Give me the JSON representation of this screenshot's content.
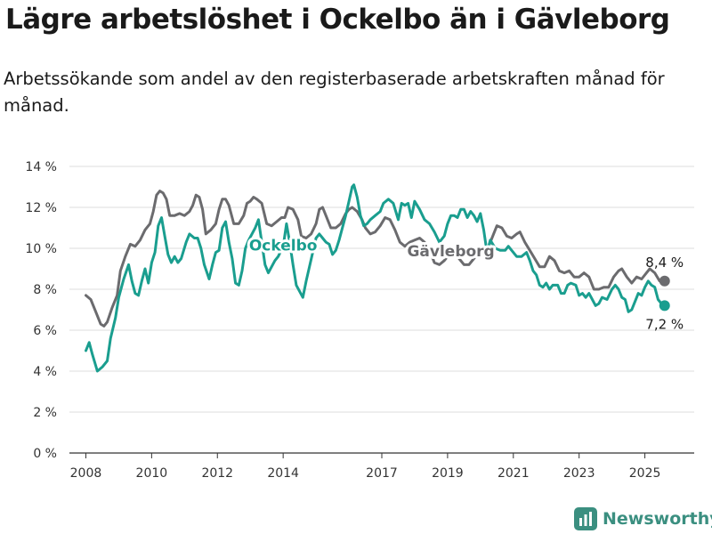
{
  "title": "Lägre arbetslöshet i Ockelbo än i Gävleborg",
  "subtitle": "Arbetssökande som andel av den registerbaserade arbetskraften månad för månad.",
  "brand": "Newsworthy",
  "chart_data": {
    "type": "line",
    "xlim": [
      2007.5,
      2026.5
    ],
    "ylim": [
      0,
      14
    ],
    "x_ticks": [
      2008,
      2010,
      2012,
      2014,
      2017,
      2019,
      2021,
      2023,
      2025
    ],
    "y_ticks": [
      {
        "value": 0,
        "label": "0 %"
      },
      {
        "value": 2,
        "label": "2 %"
      },
      {
        "value": 4,
        "label": "4 %"
      },
      {
        "value": 6,
        "label": "6 %"
      },
      {
        "value": 8,
        "label": "8 %"
      },
      {
        "value": 10,
        "label": "10 %"
      },
      {
        "value": 12,
        "label": "12 %"
      },
      {
        "value": 14,
        "label": "14 %"
      }
    ],
    "grid": true,
    "series": [
      {
        "name": "Gävleborg",
        "color": "#6b6b6e",
        "end_label": "8,4 %",
        "points": [
          [
            2008.0,
            7.7
          ],
          [
            2008.15,
            7.5
          ],
          [
            2008.3,
            6.9
          ],
          [
            2008.45,
            6.3
          ],
          [
            2008.55,
            6.2
          ],
          [
            2008.65,
            6.4
          ],
          [
            2008.8,
            7.1
          ],
          [
            2008.95,
            7.7
          ],
          [
            2009.05,
            8.9
          ],
          [
            2009.2,
            9.6
          ],
          [
            2009.35,
            10.2
          ],
          [
            2009.5,
            10.1
          ],
          [
            2009.65,
            10.4
          ],
          [
            2009.8,
            10.9
          ],
          [
            2009.95,
            11.2
          ],
          [
            2010.05,
            11.8
          ],
          [
            2010.15,
            12.6
          ],
          [
            2010.25,
            12.8
          ],
          [
            2010.35,
            12.7
          ],
          [
            2010.45,
            12.4
          ],
          [
            2010.55,
            11.6
          ],
          [
            2010.7,
            11.6
          ],
          [
            2010.85,
            11.7
          ],
          [
            2011.0,
            11.6
          ],
          [
            2011.15,
            11.8
          ],
          [
            2011.25,
            12.1
          ],
          [
            2011.35,
            12.6
          ],
          [
            2011.45,
            12.5
          ],
          [
            2011.55,
            11.9
          ],
          [
            2011.65,
            10.7
          ],
          [
            2011.8,
            10.9
          ],
          [
            2011.95,
            11.2
          ],
          [
            2012.05,
            11.9
          ],
          [
            2012.15,
            12.4
          ],
          [
            2012.25,
            12.4
          ],
          [
            2012.35,
            12.1
          ],
          [
            2012.5,
            11.2
          ],
          [
            2012.65,
            11.2
          ],
          [
            2012.8,
            11.6
          ],
          [
            2012.9,
            12.2
          ],
          [
            2013.0,
            12.3
          ],
          [
            2013.1,
            12.5
          ],
          [
            2013.2,
            12.4
          ],
          [
            2013.35,
            12.2
          ],
          [
            2013.5,
            11.2
          ],
          [
            2013.65,
            11.1
          ],
          [
            2013.8,
            11.3
          ],
          [
            2013.95,
            11.5
          ],
          [
            2014.05,
            11.5
          ],
          [
            2014.15,
            12.0
          ],
          [
            2014.3,
            11.9
          ],
          [
            2014.45,
            11.4
          ],
          [
            2014.55,
            10.6
          ],
          [
            2014.7,
            10.5
          ],
          [
            2014.85,
            10.7
          ],
          [
            2015.0,
            11.2
          ],
          [
            2015.1,
            11.9
          ],
          [
            2015.2,
            12.0
          ],
          [
            2015.3,
            11.6
          ],
          [
            2015.45,
            11.0
          ],
          [
            2015.6,
            11.0
          ],
          [
            2015.75,
            11.2
          ],
          [
            2015.9,
            11.7
          ],
          [
            2016.0,
            11.9
          ],
          [
            2016.1,
            12.0
          ],
          [
            2016.25,
            11.8
          ],
          [
            2016.4,
            11.4
          ],
          [
            2016.5,
            11.0
          ],
          [
            2016.65,
            10.7
          ],
          [
            2016.8,
            10.8
          ],
          [
            2016.95,
            11.1
          ],
          [
            2017.1,
            11.5
          ],
          [
            2017.25,
            11.4
          ],
          [
            2017.4,
            10.9
          ],
          [
            2017.55,
            10.3
          ],
          [
            2017.7,
            10.1
          ],
          [
            2017.85,
            10.3
          ],
          [
            2018.0,
            10.4
          ],
          [
            2018.15,
            10.5
          ],
          [
            2018.3,
            10.3
          ],
          [
            2018.45,
            9.9
          ],
          [
            2018.6,
            9.3
          ],
          [
            2018.75,
            9.2
          ],
          [
            2018.9,
            9.4
          ],
          [
            2019.05,
            9.7
          ],
          [
            2019.2,
            9.9
          ],
          [
            2019.35,
            9.5
          ],
          [
            2019.5,
            9.2
          ],
          [
            2019.65,
            9.2
          ],
          [
            2019.8,
            9.5
          ],
          [
            2019.95,
            9.8
          ],
          [
            2020.1,
            10.0
          ],
          [
            2020.25,
            10.1
          ],
          [
            2020.4,
            10.7
          ],
          [
            2020.5,
            11.1
          ],
          [
            2020.65,
            11.0
          ],
          [
            2020.8,
            10.6
          ],
          [
            2020.95,
            10.5
          ],
          [
            2021.1,
            10.7
          ],
          [
            2021.2,
            10.8
          ],
          [
            2021.35,
            10.3
          ],
          [
            2021.5,
            9.9
          ],
          [
            2021.65,
            9.5
          ],
          [
            2021.8,
            9.1
          ],
          [
            2021.95,
            9.1
          ],
          [
            2022.1,
            9.6
          ],
          [
            2022.25,
            9.4
          ],
          [
            2022.4,
            8.9
          ],
          [
            2022.55,
            8.8
          ],
          [
            2022.7,
            8.9
          ],
          [
            2022.85,
            8.6
          ],
          [
            2023.0,
            8.6
          ],
          [
            2023.15,
            8.8
          ],
          [
            2023.3,
            8.6
          ],
          [
            2023.45,
            8.0
          ],
          [
            2023.6,
            8.0
          ],
          [
            2023.75,
            8.1
          ],
          [
            2023.9,
            8.1
          ],
          [
            2024.05,
            8.6
          ],
          [
            2024.2,
            8.9
          ],
          [
            2024.3,
            9.0
          ],
          [
            2024.45,
            8.6
          ],
          [
            2024.6,
            8.3
          ],
          [
            2024.75,
            8.6
          ],
          [
            2024.9,
            8.5
          ],
          [
            2025.05,
            8.8
          ],
          [
            2025.15,
            9.0
          ],
          [
            2025.3,
            8.8
          ],
          [
            2025.45,
            8.4
          ],
          [
            2025.6,
            8.4
          ]
        ]
      },
      {
        "name": "Ockelbo",
        "color": "#1a9e8f",
        "end_label": "7,2 %",
        "points": [
          [
            2008.0,
            5.0
          ],
          [
            2008.1,
            5.4
          ],
          [
            2008.2,
            4.8
          ],
          [
            2008.35,
            4.0
          ],
          [
            2008.5,
            4.2
          ],
          [
            2008.65,
            4.5
          ],
          [
            2008.75,
            5.6
          ],
          [
            2008.9,
            6.6
          ],
          [
            2009.0,
            7.6
          ],
          [
            2009.15,
            8.5
          ],
          [
            2009.3,
            9.2
          ],
          [
            2009.4,
            8.4
          ],
          [
            2009.5,
            7.8
          ],
          [
            2009.6,
            7.7
          ],
          [
            2009.7,
            8.4
          ],
          [
            2009.8,
            9.0
          ],
          [
            2009.9,
            8.3
          ],
          [
            2010.0,
            9.3
          ],
          [
            2010.1,
            9.8
          ],
          [
            2010.2,
            11.1
          ],
          [
            2010.3,
            11.5
          ],
          [
            2010.4,
            10.6
          ],
          [
            2010.5,
            9.7
          ],
          [
            2010.6,
            9.3
          ],
          [
            2010.7,
            9.6
          ],
          [
            2010.8,
            9.3
          ],
          [
            2010.9,
            9.5
          ],
          [
            2011.05,
            10.3
          ],
          [
            2011.15,
            10.7
          ],
          [
            2011.3,
            10.5
          ],
          [
            2011.4,
            10.5
          ],
          [
            2011.5,
            10.0
          ],
          [
            2011.6,
            9.2
          ],
          [
            2011.75,
            8.5
          ],
          [
            2011.85,
            9.2
          ],
          [
            2011.95,
            9.8
          ],
          [
            2012.05,
            9.9
          ],
          [
            2012.15,
            11.0
          ],
          [
            2012.25,
            11.3
          ],
          [
            2012.35,
            10.3
          ],
          [
            2012.45,
            9.5
          ],
          [
            2012.55,
            8.3
          ],
          [
            2012.65,
            8.2
          ],
          [
            2012.75,
            8.9
          ],
          [
            2012.85,
            10.0
          ],
          [
            2012.95,
            10.4
          ],
          [
            2013.05,
            10.7
          ],
          [
            2013.15,
            11.0
          ],
          [
            2013.25,
            11.4
          ],
          [
            2013.35,
            10.3
          ],
          [
            2013.45,
            9.2
          ],
          [
            2013.55,
            8.8
          ],
          [
            2013.65,
            9.1
          ],
          [
            2013.75,
            9.4
          ],
          [
            2013.85,
            9.6
          ],
          [
            2014.0,
            10.1
          ],
          [
            2014.1,
            11.2
          ],
          [
            2014.2,
            10.3
          ],
          [
            2014.3,
            9.2
          ],
          [
            2014.4,
            8.2
          ],
          [
            2014.5,
            7.9
          ],
          [
            2014.6,
            7.6
          ],
          [
            2014.7,
            8.4
          ],
          [
            2014.8,
            9.1
          ],
          [
            2014.9,
            9.8
          ],
          [
            2015.0,
            10.5
          ],
          [
            2015.1,
            10.7
          ],
          [
            2015.2,
            10.5
          ],
          [
            2015.3,
            10.3
          ],
          [
            2015.4,
            10.2
          ],
          [
            2015.5,
            9.7
          ],
          [
            2015.6,
            9.9
          ],
          [
            2015.7,
            10.4
          ],
          [
            2015.8,
            11.0
          ],
          [
            2015.9,
            11.6
          ],
          [
            2016.0,
            12.3
          ],
          [
            2016.1,
            13.0
          ],
          [
            2016.15,
            13.1
          ],
          [
            2016.25,
            12.5
          ],
          [
            2016.35,
            11.6
          ],
          [
            2016.45,
            11.1
          ],
          [
            2016.55,
            11.2
          ],
          [
            2016.65,
            11.4
          ],
          [
            2016.8,
            11.6
          ],
          [
            2016.95,
            11.8
          ],
          [
            2017.05,
            12.2
          ],
          [
            2017.2,
            12.4
          ],
          [
            2017.35,
            12.2
          ],
          [
            2017.5,
            11.4
          ],
          [
            2017.6,
            12.2
          ],
          [
            2017.7,
            12.1
          ],
          [
            2017.8,
            12.2
          ],
          [
            2017.9,
            11.5
          ],
          [
            2018.0,
            12.3
          ],
          [
            2018.15,
            11.9
          ],
          [
            2018.3,
            11.4
          ],
          [
            2018.45,
            11.2
          ],
          [
            2018.6,
            10.8
          ],
          [
            2018.75,
            10.3
          ],
          [
            2018.9,
            10.6
          ],
          [
            2019.0,
            11.2
          ],
          [
            2019.1,
            11.6
          ],
          [
            2019.2,
            11.6
          ],
          [
            2019.3,
            11.5
          ],
          [
            2019.4,
            11.9
          ],
          [
            2019.5,
            11.9
          ],
          [
            2019.6,
            11.5
          ],
          [
            2019.7,
            11.8
          ],
          [
            2019.8,
            11.6
          ],
          [
            2019.9,
            11.3
          ],
          [
            2020.0,
            11.7
          ],
          [
            2020.1,
            10.9
          ],
          [
            2020.2,
            9.8
          ],
          [
            2020.3,
            10.4
          ],
          [
            2020.45,
            10.0
          ],
          [
            2020.6,
            9.9
          ],
          [
            2020.75,
            9.9
          ],
          [
            2020.85,
            10.1
          ],
          [
            2020.95,
            9.9
          ],
          [
            2021.1,
            9.6
          ],
          [
            2021.25,
            9.6
          ],
          [
            2021.4,
            9.8
          ],
          [
            2021.5,
            9.4
          ],
          [
            2021.6,
            8.9
          ],
          [
            2021.7,
            8.7
          ],
          [
            2021.8,
            8.2
          ],
          [
            2021.9,
            8.1
          ],
          [
            2022.0,
            8.3
          ],
          [
            2022.1,
            8.0
          ],
          [
            2022.2,
            8.2
          ],
          [
            2022.35,
            8.2
          ],
          [
            2022.45,
            7.8
          ],
          [
            2022.55,
            7.8
          ],
          [
            2022.65,
            8.2
          ],
          [
            2022.75,
            8.3
          ],
          [
            2022.9,
            8.2
          ],
          [
            2023.0,
            7.7
          ],
          [
            2023.1,
            7.8
          ],
          [
            2023.2,
            7.6
          ],
          [
            2023.3,
            7.8
          ],
          [
            2023.4,
            7.5
          ],
          [
            2023.5,
            7.2
          ],
          [
            2023.6,
            7.3
          ],
          [
            2023.7,
            7.6
          ],
          [
            2023.85,
            7.5
          ],
          [
            2024.0,
            8.0
          ],
          [
            2024.1,
            8.2
          ],
          [
            2024.2,
            8.0
          ],
          [
            2024.3,
            7.6
          ],
          [
            2024.4,
            7.5
          ],
          [
            2024.5,
            6.9
          ],
          [
            2024.6,
            7.0
          ],
          [
            2024.7,
            7.4
          ],
          [
            2024.8,
            7.8
          ],
          [
            2024.9,
            7.7
          ],
          [
            2025.0,
            8.1
          ],
          [
            2025.1,
            8.4
          ],
          [
            2025.2,
            8.2
          ],
          [
            2025.3,
            8.1
          ],
          [
            2025.4,
            7.5
          ],
          [
            2025.5,
            7.3
          ],
          [
            2025.6,
            7.2
          ]
        ]
      }
    ],
    "inline_labels": [
      {
        "series": "Ockelbo",
        "text": "Ockelbo",
        "x": 2014.0,
        "y": 9.9
      },
      {
        "series": "Gävleborg",
        "text": "Gävleborg",
        "x": 2019.1,
        "y": 9.6
      }
    ]
  }
}
